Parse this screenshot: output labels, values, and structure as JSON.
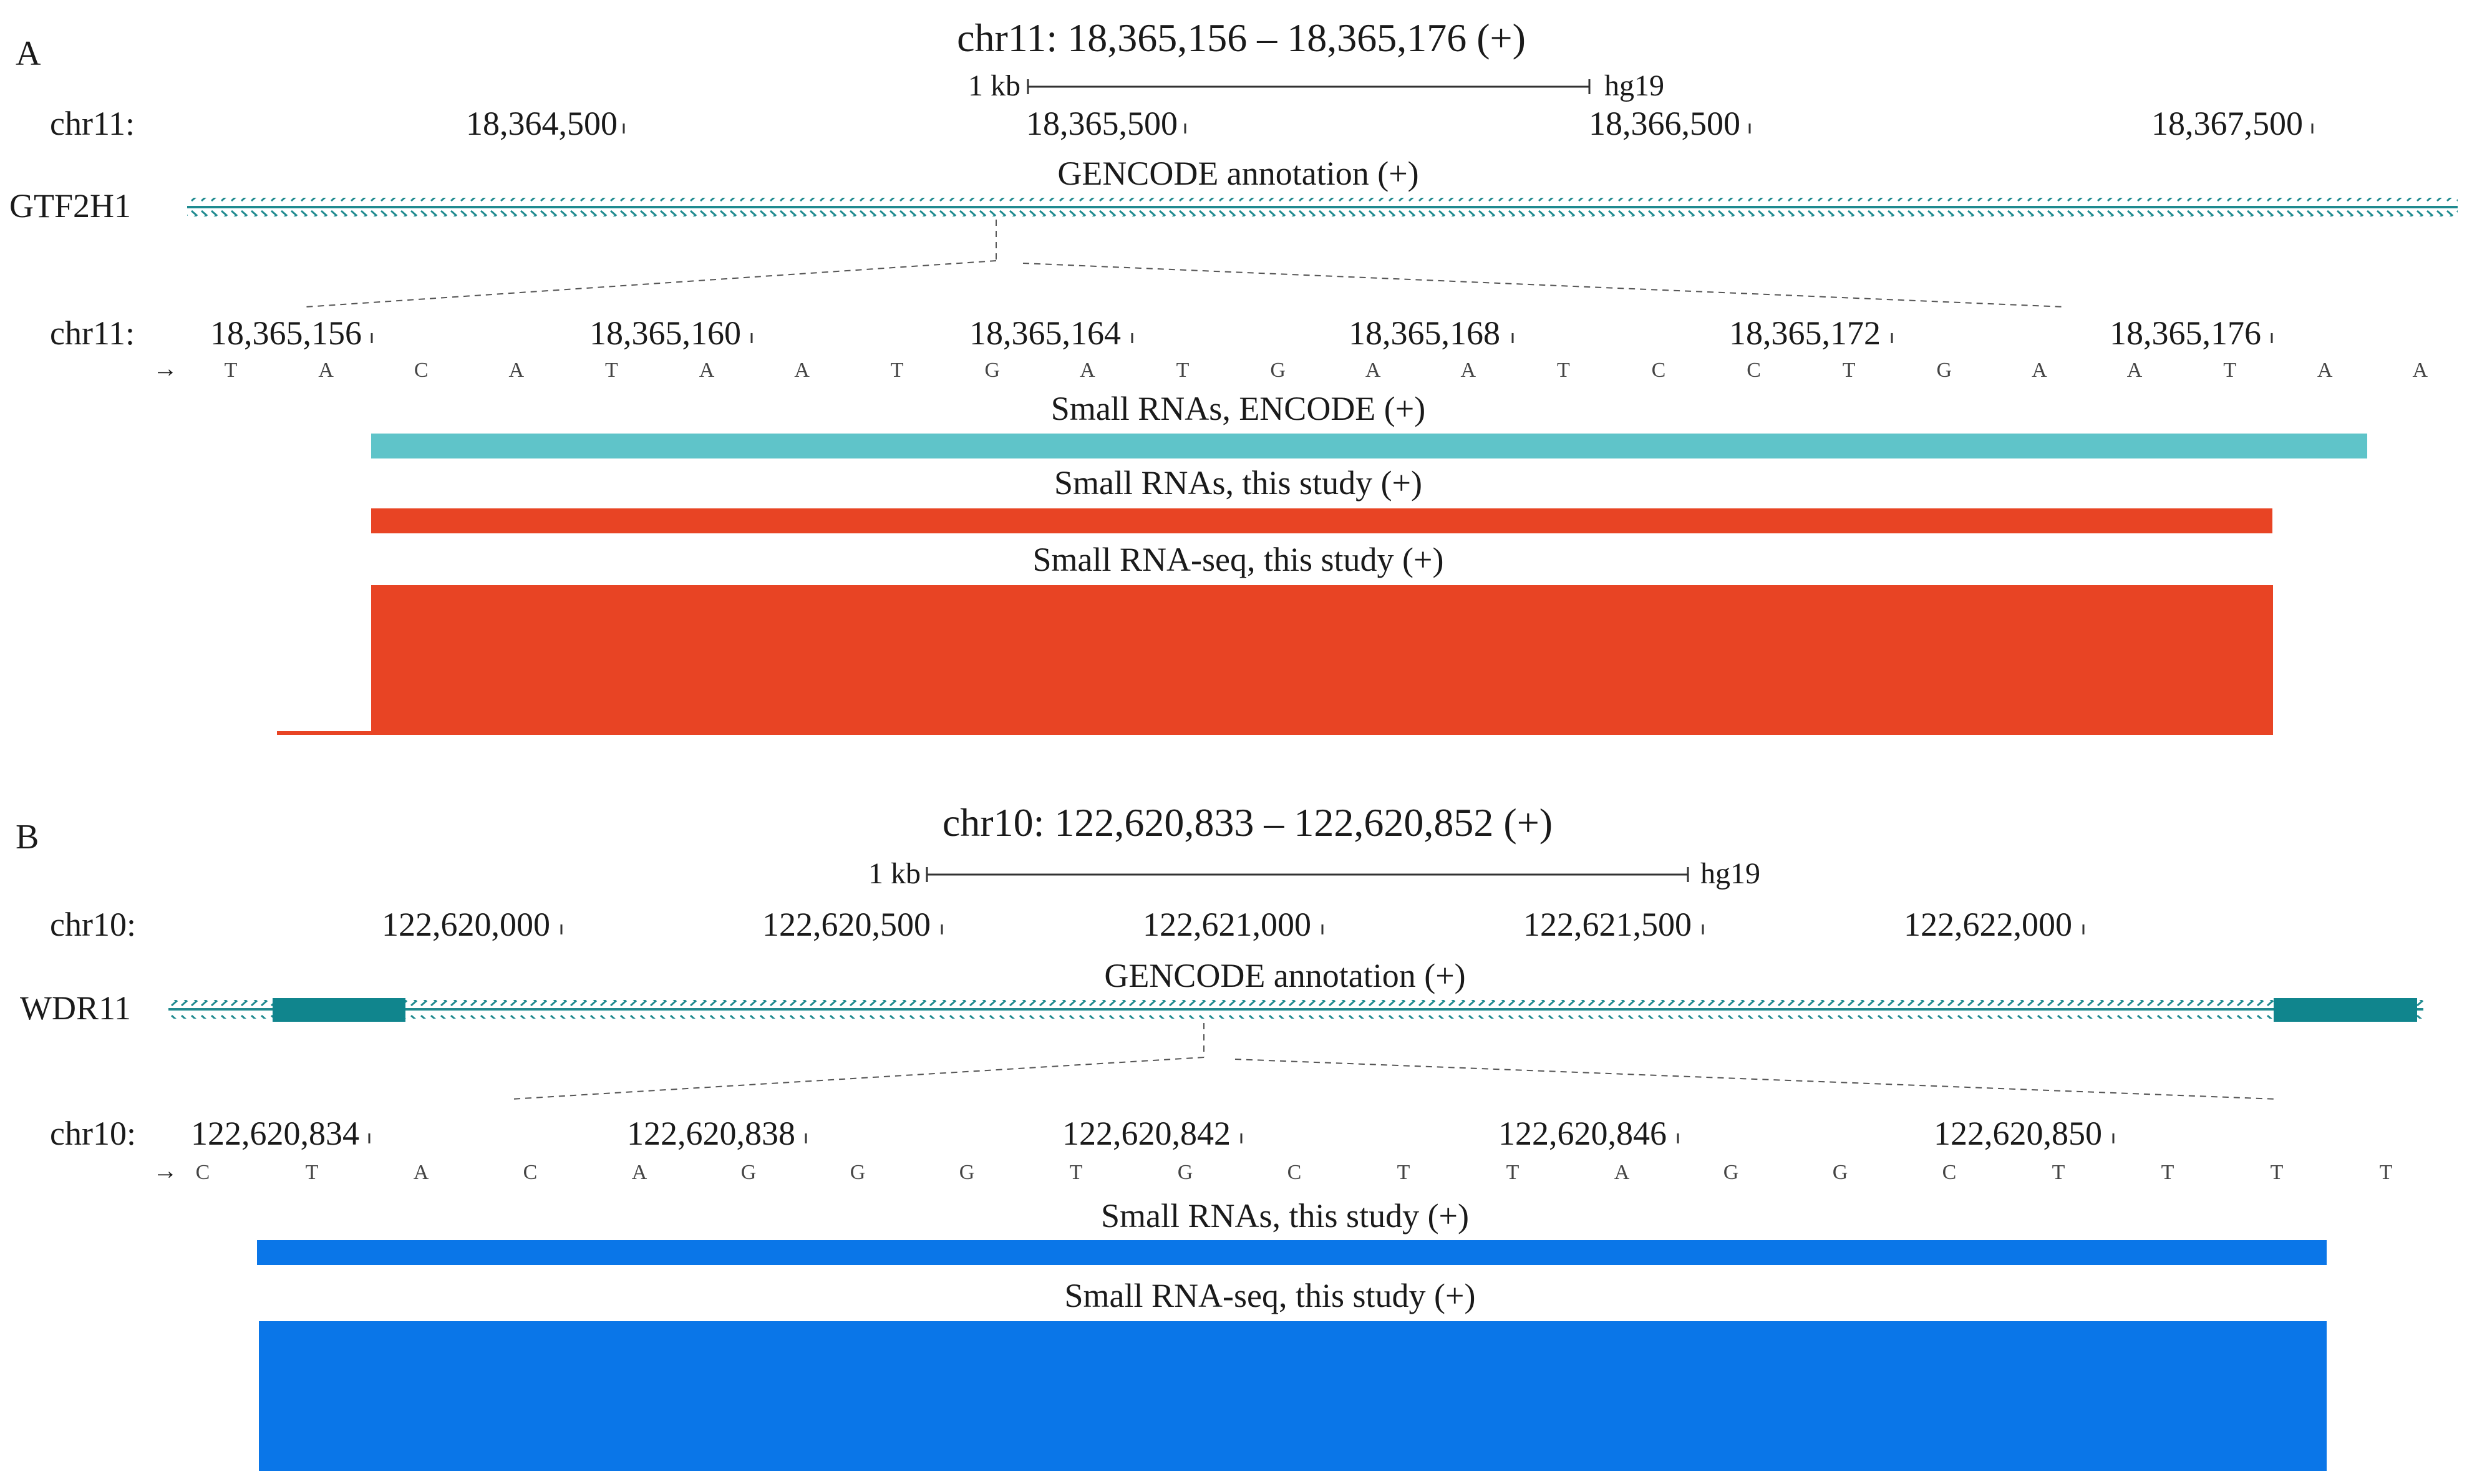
{
  "colors": {
    "intron": "#1f8a8f",
    "exon": "#10858d",
    "encode_teal": "#5fc4c9",
    "red": "#e84424",
    "blue": "#0a76e8",
    "text": "#1a1a1a"
  },
  "panels": [
    {
      "letter": "A",
      "title": "chr11: 18,365,156 – 18,365,176 (+)",
      "scale_label": "1 kb",
      "assembly": "hg19",
      "chrom_label": "chr11:",
      "overview_ticks": [
        "18,364,500",
        "18,365,500",
        "18,366,500",
        "18,367,500"
      ],
      "annotation_title": "GENCODE annotation (+)",
      "gene": "GTF2H1",
      "zoom_chrom_label": "chr11:",
      "zoom_ticks": [
        "18,365,156",
        "18,365,160",
        "18,365,164",
        "18,365,168",
        "18,365,172",
        "18,365,176"
      ],
      "sequence_arrow": "→",
      "sequence": [
        "T",
        "A",
        "C",
        "A",
        "T",
        "A",
        "A",
        "T",
        "G",
        "A",
        "T",
        "G",
        "A",
        "A",
        "T",
        "C",
        "C",
        "T",
        "G",
        "A",
        "A",
        "T",
        "A",
        "A"
      ],
      "tracks": [
        {
          "label": "Small RNAs, ENCODE (+)",
          "color": "encode_teal",
          "kind": "feature"
        },
        {
          "label": "Small RNAs, this study (+)",
          "color": "red",
          "kind": "feature"
        },
        {
          "label": "Small RNA-seq, this study (+)",
          "color": "red",
          "kind": "coverage"
        }
      ]
    },
    {
      "letter": "B",
      "title": "chr10: 122,620,833 – 122,620,852 (+)",
      "scale_label": "1 kb",
      "assembly": "hg19",
      "chrom_label": "chr10:",
      "overview_ticks": [
        "122,620,000",
        "122,620,500",
        "122,621,000",
        "122,621,500",
        "122,622,000"
      ],
      "annotation_title": "GENCODE annotation (+)",
      "gene": "WDR11",
      "zoom_chrom_label": "chr10:",
      "zoom_ticks": [
        "122,620,834",
        "122,620,838",
        "122,620,842",
        "122,620,846",
        "122,620,850"
      ],
      "sequence_arrow": "→",
      "sequence": [
        "C",
        "T",
        "A",
        "C",
        "A",
        "G",
        "G",
        "G",
        "T",
        "G",
        "C",
        "T",
        "T",
        "A",
        "G",
        "G",
        "C",
        "T",
        "T",
        "T",
        "T"
      ],
      "tracks": [
        {
          "label": "Small RNAs, this study (+)",
          "color": "blue",
          "kind": "feature"
        },
        {
          "label": "Small RNA-seq, this study (+)",
          "color": "blue",
          "kind": "coverage"
        }
      ]
    }
  ]
}
